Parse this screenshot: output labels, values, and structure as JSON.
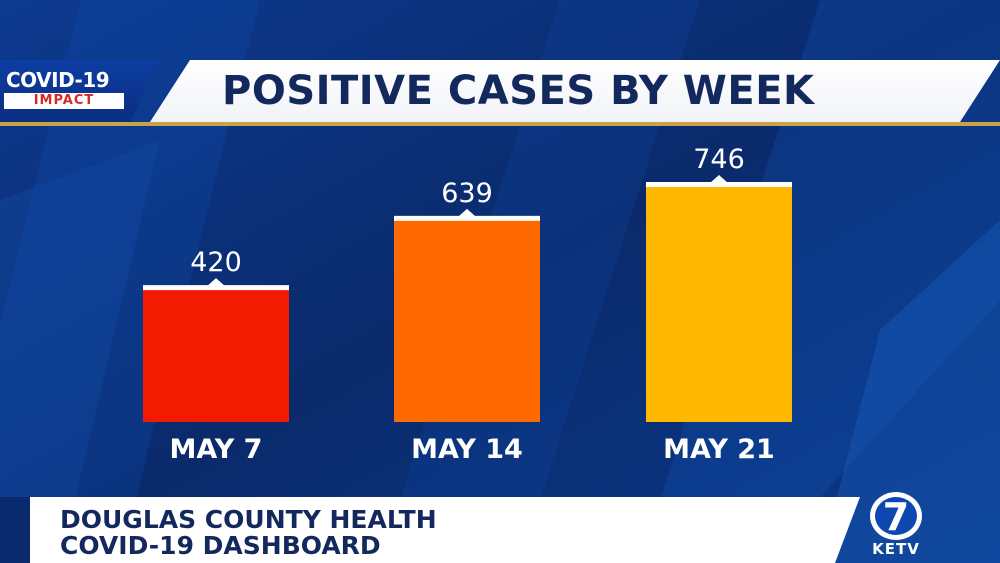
{
  "logo": {
    "top": "COVID-19",
    "bottom": "IMPACT"
  },
  "chart_data": {
    "type": "bar",
    "title": "POSITIVE CASES BY WEEK",
    "categories": [
      "MAY 7",
      "MAY 14",
      "MAY 21"
    ],
    "values": [
      420,
      639,
      746
    ],
    "colors": [
      "#f21a00",
      "#ff6a00",
      "#ffb700"
    ],
    "ylim": [
      0,
      800
    ],
    "xlabel": "",
    "ylabel": ""
  },
  "lower_third": {
    "line1": "DOUGLAS COUNTY HEALTH",
    "line2": "COVID-19 DASHBOARD"
  },
  "station": {
    "name": "KETV",
    "number": "7"
  },
  "colors": {
    "background": "#0a2a6b",
    "title_text": "#13285d",
    "accent_gold": "#c9a24a"
  }
}
